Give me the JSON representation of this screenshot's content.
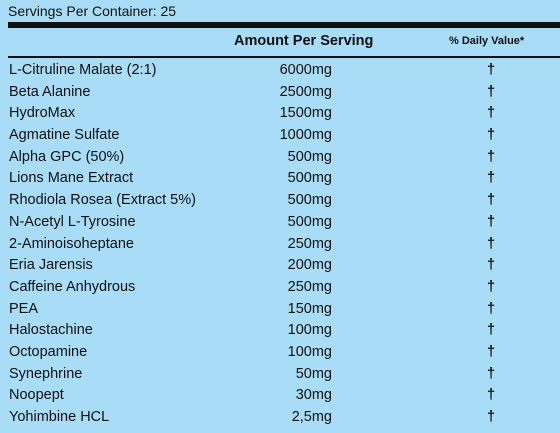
{
  "servings": "Servings Per Container: 25",
  "header": {
    "amount": "Amount Per Serving",
    "daily_value": "% Daily Value*"
  },
  "ingredients": [
    {
      "name": "L-Citruline Malate (2:1)",
      "amount": "6000mg",
      "dv": "†"
    },
    {
      "name": "Beta Alanine",
      "amount": "2500mg",
      "dv": "†"
    },
    {
      "name": "HydroMax",
      "amount": "1500mg",
      "dv": "†"
    },
    {
      "name": "Agmatine Sulfate",
      "amount": "1000mg",
      "dv": "†"
    },
    {
      "name": "Alpha GPC (50%)",
      "amount": "500mg",
      "dv": "†"
    },
    {
      "name": "Lions Mane Extract",
      "amount": "500mg",
      "dv": "†"
    },
    {
      "name": "Rhodiola Rosea (Extract 5%)",
      "amount": "500mg",
      "dv": "†"
    },
    {
      "name": "N-Acetyl L-Tyrosine",
      "amount": "500mg",
      "dv": "†"
    },
    {
      "name": "2-Aminoisoheptane",
      "amount": "250mg",
      "dv": "†"
    },
    {
      "name": "Eria Jarensis",
      "amount": "200mg",
      "dv": "†"
    },
    {
      "name": "Caffeine Anhydrous",
      "amount": "250mg",
      "dv": "†"
    },
    {
      "name": "PEA",
      "amount": "150mg",
      "dv": "†"
    },
    {
      "name": "Halostachine",
      "amount": "100mg",
      "dv": "†"
    },
    {
      "name": "Octopamine",
      "amount": "100mg",
      "dv": "†"
    },
    {
      "name": "Synephrine",
      "amount": "50mg",
      "dv": "†"
    },
    {
      "name": "Noopept",
      "amount": "30mg",
      "dv": "†"
    },
    {
      "name": "Yohimbine HCL",
      "amount": "2,5mg",
      "dv": "†"
    }
  ]
}
